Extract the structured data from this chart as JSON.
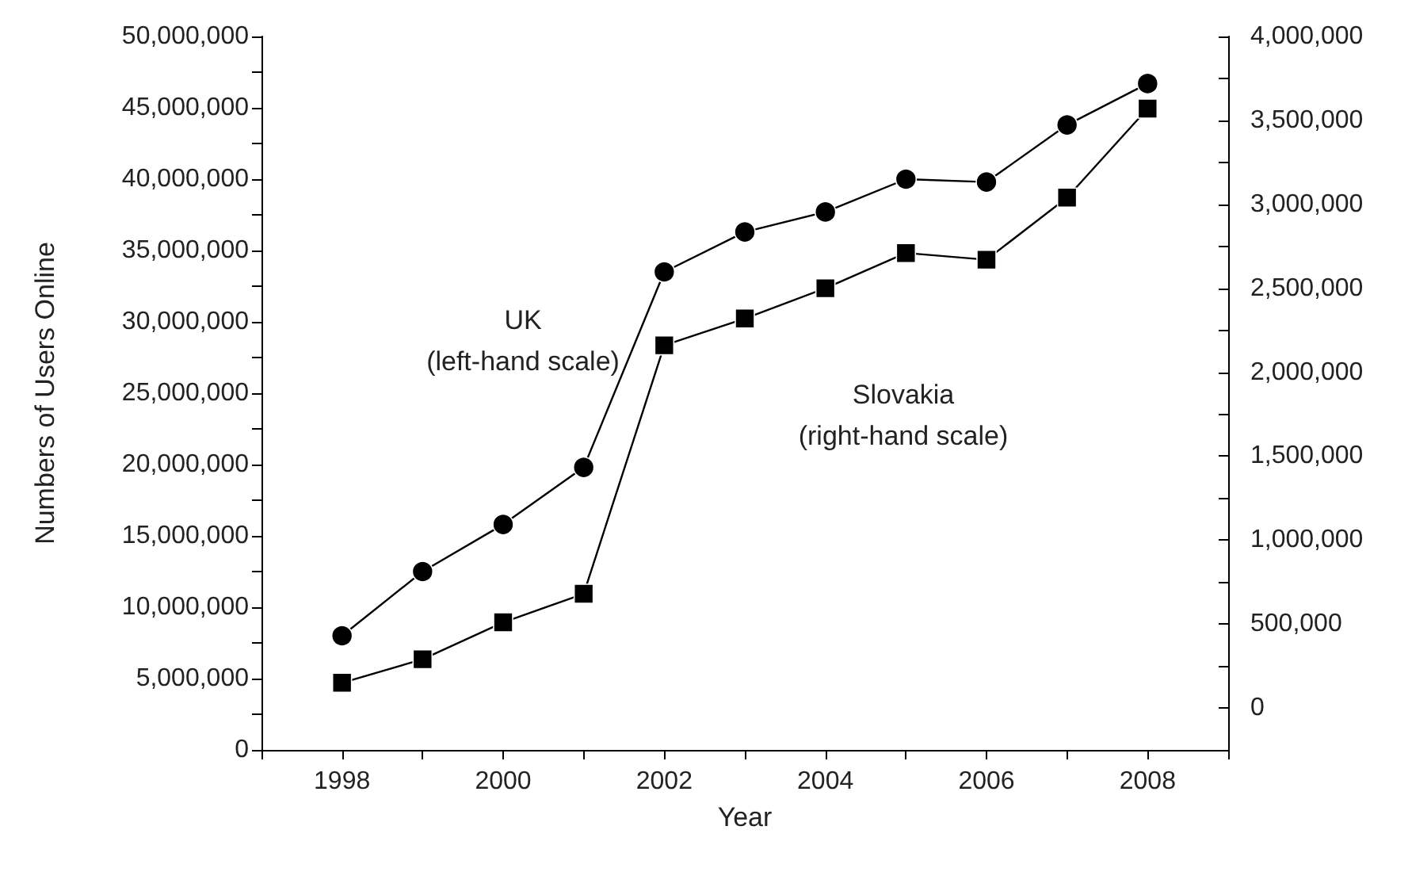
{
  "chart_data": {
    "type": "line",
    "xlabel": "Year",
    "ylabel": "Numbers of Users Online",
    "x": [
      1998,
      1999,
      2000,
      2001,
      2002,
      2003,
      2004,
      2005,
      2006,
      2007,
      2008
    ],
    "series": [
      {
        "color": "#000000",
        "marker": "circle",
        "values": [
          8000000,
          12500000,
          15800000,
          19800000,
          33500000,
          36300000,
          37700000,
          40000000,
          39800000,
          43800000,
          46700000
        ]
      },
      {
        "color": "#000000",
        "marker": "square",
        "axis": "y2",
        "values": [
          150000,
          290000,
          510000,
          680000,
          2160000,
          2320000,
          2500000,
          2710000,
          2670000,
          3040000,
          3570000
        ]
      }
    ],
    "xlim": [
      1997,
      2009
    ],
    "xticks": [
      {
        "value": 1997,
        "label": null
      },
      1998,
      {
        "value": 1999,
        "label": null
      },
      2000,
      {
        "value": 2001,
        "label": null
      },
      2002,
      {
        "value": 2003,
        "label": null
      },
      2004,
      {
        "value": 2005,
        "label": null
      },
      2006,
      {
        "value": 2007,
        "label": null
      },
      2008,
      {
        "value": 2009,
        "label": null
      }
    ],
    "ylim": [
      0,
      50000000
    ],
    "yticks": [
      0,
      {
        "value": 2500000,
        "label": null
      },
      {
        "value": 5000000,
        "label": "5,000,000"
      },
      {
        "value": 7500000,
        "label": null
      },
      {
        "value": 10000000,
        "label": "10,000,000"
      },
      {
        "value": 12500000,
        "label": null
      },
      {
        "value": 15000000,
        "label": "15,000,000"
      },
      {
        "value": 17500000,
        "label": null
      },
      {
        "value": 20000000,
        "label": "20,000,000"
      },
      {
        "value": 22500000,
        "label": null
      },
      {
        "value": 25000000,
        "label": "25,000,000"
      },
      {
        "value": 27500000,
        "label": null
      },
      {
        "value": 30000000,
        "label": "30,000,000"
      },
      {
        "value": 32500000,
        "label": null
      },
      {
        "value": 35000000,
        "label": "35,000,000"
      },
      {
        "value": 37500000,
        "label": null
      },
      {
        "value": 40000000,
        "label": "40,000,000"
      },
      {
        "value": 42500000,
        "label": null
      },
      {
        "value": 45000000,
        "label": "45,000,000"
      },
      {
        "value": 47500000,
        "label": null
      },
      {
        "value": 50000000,
        "label": "50,000,000"
      }
    ],
    "y2lim": [
      -250000,
      4000000
    ],
    "y2ticks": [
      {
        "value": -250000,
        "label": null
      },
      0,
      {
        "value": 250000,
        "label": null
      },
      {
        "value": 500000,
        "label": "500,000"
      },
      {
        "value": 750000,
        "label": null
      },
      {
        "value": 1000000,
        "label": "1,000,000"
      },
      {
        "value": 1250000,
        "label": null
      },
      {
        "value": 1500000,
        "label": "1,500,000"
      },
      {
        "value": 1750000,
        "label": null
      },
      {
        "value": 2000000,
        "label": "2,000,000"
      },
      {
        "value": 2250000,
        "label": null
      },
      {
        "value": 2500000,
        "label": "2,500,000"
      },
      {
        "value": 2750000,
        "label": null
      },
      {
        "value": 3000000,
        "label": "3,000,000"
      },
      {
        "value": 3250000,
        "label": null
      },
      {
        "value": 3500000,
        "label": "3,500,000"
      },
      {
        "value": 3750000,
        "label": null
      },
      {
        "value": 4000000,
        "label": "4,000,000"
      }
    ],
    "annotations": [
      "UK\n(left-hand scale)",
      "Slovakia\n(right-hand scale)"
    ],
    "grid": false,
    "line_style": "solid"
  }
}
